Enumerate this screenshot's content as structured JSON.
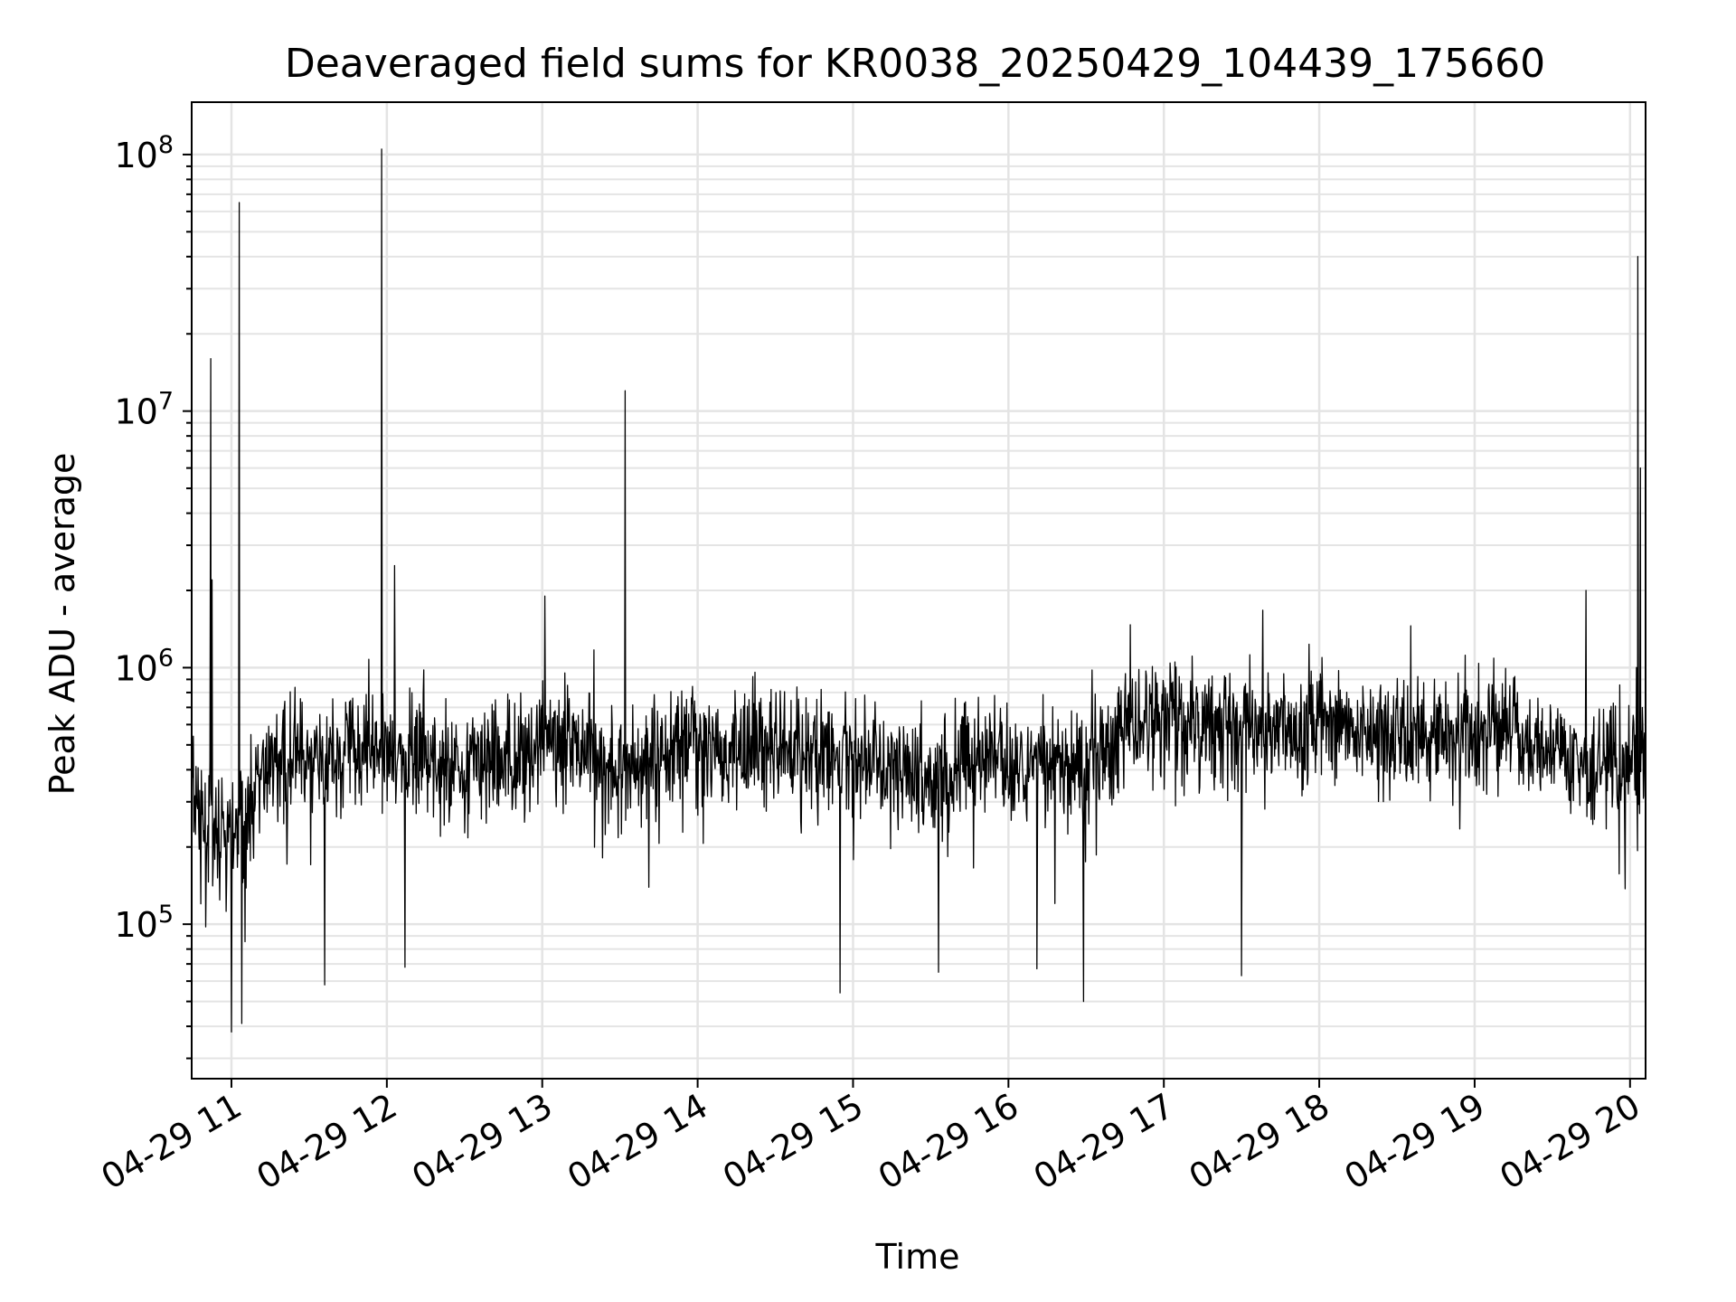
{
  "chart_data": {
    "type": "line",
    "title": "Deaveraged field sums for KR0038_20250429_104439_175660",
    "xlabel": "Time",
    "ylabel": "Peak ADU - average",
    "yscale": "log",
    "ylim": [
      25000,
      160000000
    ],
    "xlim": [
      "2025-04-29T10:44:39",
      "2025-04-29T20:06:00"
    ],
    "grid": true,
    "x_ticks": [
      "04-29 11",
      "04-29 12",
      "04-29 13",
      "04-29 14",
      "04-29 15",
      "04-29 16",
      "04-29 17",
      "04-29 18",
      "04-29 19",
      "04-29 20"
    ],
    "x_tick_times": [
      "2025-04-29T11:00",
      "2025-04-29T12:00",
      "2025-04-29T13:00",
      "2025-04-29T14:00",
      "2025-04-29T15:00",
      "2025-04-29T16:00",
      "2025-04-29T17:00",
      "2025-04-29T18:00",
      "2025-04-29T19:00",
      "2025-04-29T20:00"
    ],
    "y_ticks": [
      {
        "base": "10",
        "exp": "5",
        "value": 100000
      },
      {
        "base": "10",
        "exp": "6",
        "value": 1000000
      },
      {
        "base": "10",
        "exp": "7",
        "value": 10000000
      },
      {
        "base": "10",
        "exp": "8",
        "value": 100000000
      }
    ],
    "line_color": "#000000",
    "series": [
      {
        "x": [
          "2025-04-29T10:44:39",
          "2025-04-29T10:50",
          "2025-04-29T10:55",
          "2025-04-29T11:00",
          "2025-04-29T11:05",
          "2025-04-29T11:10",
          "2025-04-29T11:20",
          "2025-04-29T11:30",
          "2025-04-29T11:40",
          "2025-04-29T11:50",
          "2025-04-29T12:00",
          "2025-04-29T12:10",
          "2025-04-29T12:20",
          "2025-04-29T12:30",
          "2025-04-29T12:40",
          "2025-04-29T12:50",
          "2025-04-29T13:00",
          "2025-04-29T13:10",
          "2025-04-29T13:20",
          "2025-04-29T13:30",
          "2025-04-29T13:40",
          "2025-04-29T13:50",
          "2025-04-29T14:00",
          "2025-04-29T14:15",
          "2025-04-29T14:30",
          "2025-04-29T14:45",
          "2025-04-29T15:00",
          "2025-04-29T15:15",
          "2025-04-29T15:30",
          "2025-04-29T15:45",
          "2025-04-29T16:00",
          "2025-04-29T16:15",
          "2025-04-29T16:30",
          "2025-04-29T16:45",
          "2025-04-29T17:00",
          "2025-04-29T17:15",
          "2025-04-29T17:30",
          "2025-04-29T17:45",
          "2025-04-29T18:00",
          "2025-04-29T18:15",
          "2025-04-29T18:30",
          "2025-04-29T18:45",
          "2025-04-29T19:00",
          "2025-04-29T19:15",
          "2025-04-29T19:30",
          "2025-04-29T19:45",
          "2025-04-29T20:00",
          "2025-04-29T20:06"
        ],
        "y": [
          300000,
          250000,
          200000,
          220000,
          250000,
          380000,
          450000,
          420000,
          450000,
          480000,
          500000,
          450000,
          420000,
          400000,
          420000,
          450000,
          500000,
          550000,
          450000,
          400000,
          450000,
          480000,
          500000,
          500000,
          480000,
          450000,
          450000,
          420000,
          400000,
          420000,
          430000,
          420000,
          400000,
          600000,
          620000,
          600000,
          580000,
          600000,
          620000,
          600000,
          550000,
          520000,
          550000,
          560000,
          520000,
          400000,
          420000,
          450000
        ]
      }
    ],
    "spikes": [
      {
        "x": "2025-04-29T10:52",
        "y": 16000000
      },
      {
        "x": "2025-04-29T10:52:30",
        "y": 2200000
      },
      {
        "x": "2025-04-29T11:03",
        "y": 65000000
      },
      {
        "x": "2025-04-29T11:58",
        "y": 105000000
      },
      {
        "x": "2025-04-29T12:03",
        "y": 2500000
      },
      {
        "x": "2025-04-29T13:01",
        "y": 1900000
      },
      {
        "x": "2025-04-29T13:32",
        "y": 12000000
      },
      {
        "x": "2025-04-29T19:43",
        "y": 2000000
      },
      {
        "x": "2025-04-29T20:03",
        "y": 40000000
      },
      {
        "x": "2025-04-29T20:04",
        "y": 6000000
      }
    ],
    "dips": [
      {
        "x": "2025-04-29T11:00",
        "y": 38000
      },
      {
        "x": "2025-04-29T11:04",
        "y": 41000
      },
      {
        "x": "2025-04-29T11:36",
        "y": 58000
      },
      {
        "x": "2025-04-29T12:07",
        "y": 68000
      },
      {
        "x": "2025-04-29T14:55",
        "y": 54000
      },
      {
        "x": "2025-04-29T15:33",
        "y": 65000
      },
      {
        "x": "2025-04-29T16:11",
        "y": 67000
      },
      {
        "x": "2025-04-29T16:29",
        "y": 50000
      },
      {
        "x": "2025-04-29T17:30",
        "y": 63000
      }
    ]
  }
}
